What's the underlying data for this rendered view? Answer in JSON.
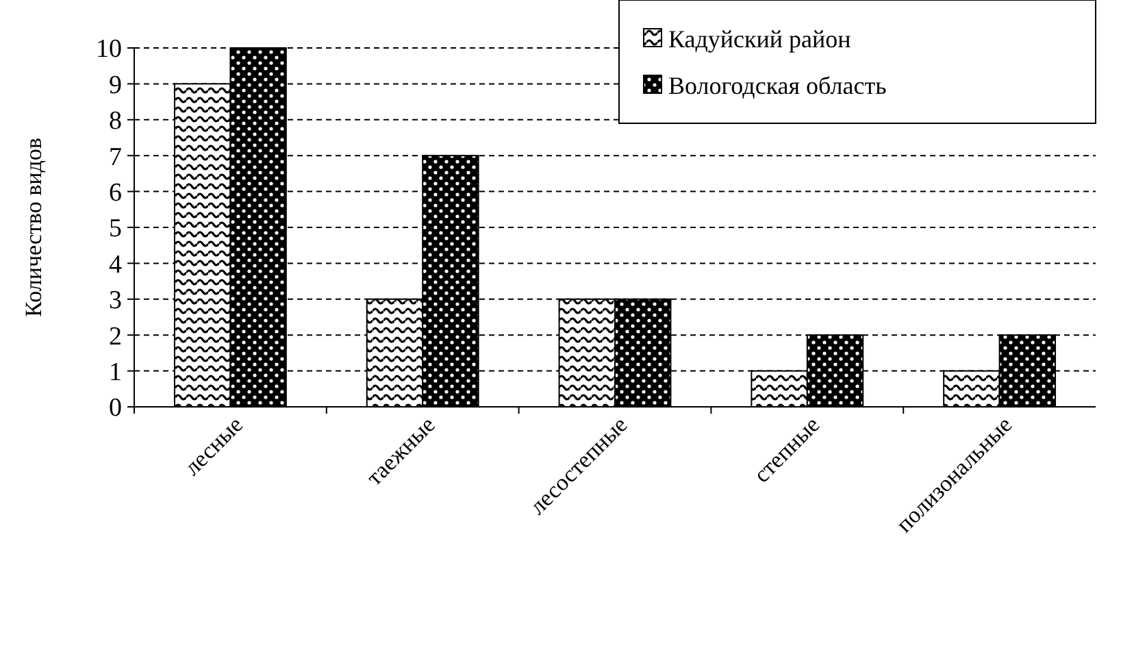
{
  "chart_data": {
    "type": "bar",
    "ylabel": "Количество видов",
    "categories": [
      "лесные",
      "таежные",
      "лесостепные",
      "степные",
      "полизональные"
    ],
    "series": [
      {
        "name": "Кадуйский район",
        "color": "#000000",
        "values": [
          9,
          3,
          3,
          1,
          1
        ]
      },
      {
        "name": "Вологодская область",
        "color": "#000000",
        "values": [
          10,
          7,
          3,
          2,
          2
        ]
      }
    ],
    "ylim": [
      0,
      10
    ],
    "yticks": [
      0,
      1,
      2,
      3,
      4,
      5,
      6,
      7,
      8,
      9,
      10
    ],
    "grid": "y",
    "legend": "top right"
  }
}
